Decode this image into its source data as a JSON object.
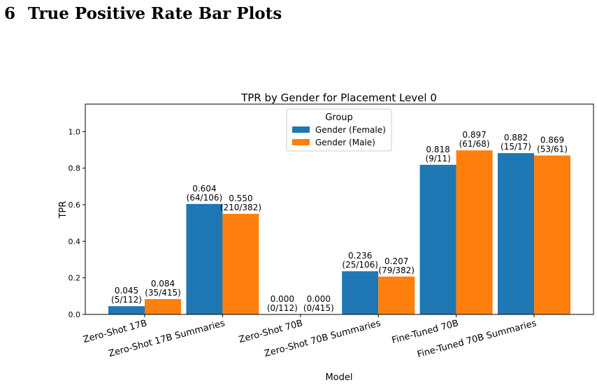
{
  "section": {
    "number": "6",
    "title": "True Positive Rate Bar Plots"
  },
  "chart_data": {
    "type": "bar",
    "title": "TPR by Gender for Placement Level 0",
    "xlabel": "Model",
    "ylabel": "TPR",
    "ylim": [
      0,
      1.15
    ],
    "yticks": [
      "0.0",
      "0.2",
      "0.4",
      "0.6",
      "0.8",
      "1.0"
    ],
    "grid": false,
    "legend": {
      "title": "Group",
      "placement": "upper-center"
    },
    "categories": [
      "Zero-Shot 17B",
      "Zero-Shot 17B Summaries",
      "Zero-Shot 70B",
      "Zero-Shot 70B Summaries",
      "Fine-Tuned 70B",
      "Fine-Tuned 70B Summaries"
    ],
    "series": [
      {
        "name": "Gender (Female)",
        "color": "#1f77b4",
        "values": [
          0.045,
          0.604,
          0.0,
          0.236,
          0.818,
          0.882
        ],
        "labels": [
          "0.045",
          "0.604",
          "0.000",
          "0.236",
          "0.818",
          "0.882"
        ],
        "counts": [
          "(5/112)",
          "(64/106)",
          "(0/112)",
          "(25/106)",
          "(9/11)",
          "(15/17)"
        ]
      },
      {
        "name": "Gender (Male)",
        "color": "#ff7f0e",
        "values": [
          0.084,
          0.55,
          0.0,
          0.207,
          0.897,
          0.869
        ],
        "labels": [
          "0.084",
          "0.550",
          "0.000",
          "0.207",
          "0.897",
          "0.869"
        ],
        "counts": [
          "(35/415)",
          "(210/382)",
          "(0/415)",
          "(79/382)",
          "(61/68)",
          "(53/61)"
        ]
      }
    ]
  }
}
